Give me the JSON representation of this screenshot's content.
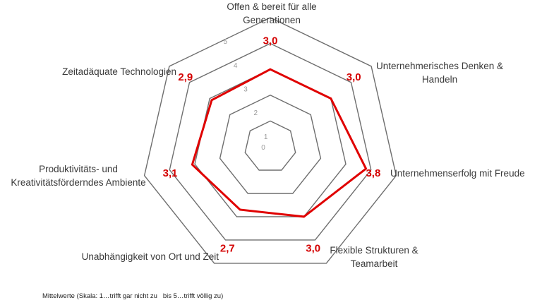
{
  "chart_data": {
    "type": "radar",
    "scale_ticks": [
      "0",
      "1",
      "2",
      "3",
      "4",
      "5"
    ],
    "axes": [
      {
        "label_lines": [
          "Offen & bereit für alle",
          "Generationen"
        ],
        "value": 3.0,
        "value_label": "3,0"
      },
      {
        "label_lines": [
          "Unternehmerisches Denken &",
          "Handeln"
        ],
        "value": 3.0,
        "value_label": "3,0"
      },
      {
        "label_lines": [
          "Unternehmenserfolg mit Freude"
        ],
        "value": 3.8,
        "value_label": "3,8"
      },
      {
        "label_lines": [
          "Flexible Strukturen &",
          "Teamarbeit"
        ],
        "value": 3.0,
        "value_label": "3,0"
      },
      {
        "label_lines": [
          "Unabhängigkeit von Ort und Zeit"
        ],
        "value": 2.7,
        "value_label": "2,7"
      },
      {
        "label_lines": [
          "Produktivitäts- und",
          "Kreativitätsförderndes Ambiente"
        ],
        "value": 3.1,
        "value_label": "3,1"
      },
      {
        "label_lines": [
          "Zeitadäquate Technologien"
        ],
        "value": 2.9,
        "value_label": "2,9"
      }
    ],
    "range": [
      0,
      5
    ],
    "grid": true,
    "colors": {
      "series": "#e00000",
      "grid": "#6e6e6e",
      "tick_text": "#9a9a9a",
      "value_text": "#d40000"
    }
  },
  "footnote": "Mittelwerte (Skala: 1…trifft gar nicht zu   bis 5…trifft völlig zu)"
}
